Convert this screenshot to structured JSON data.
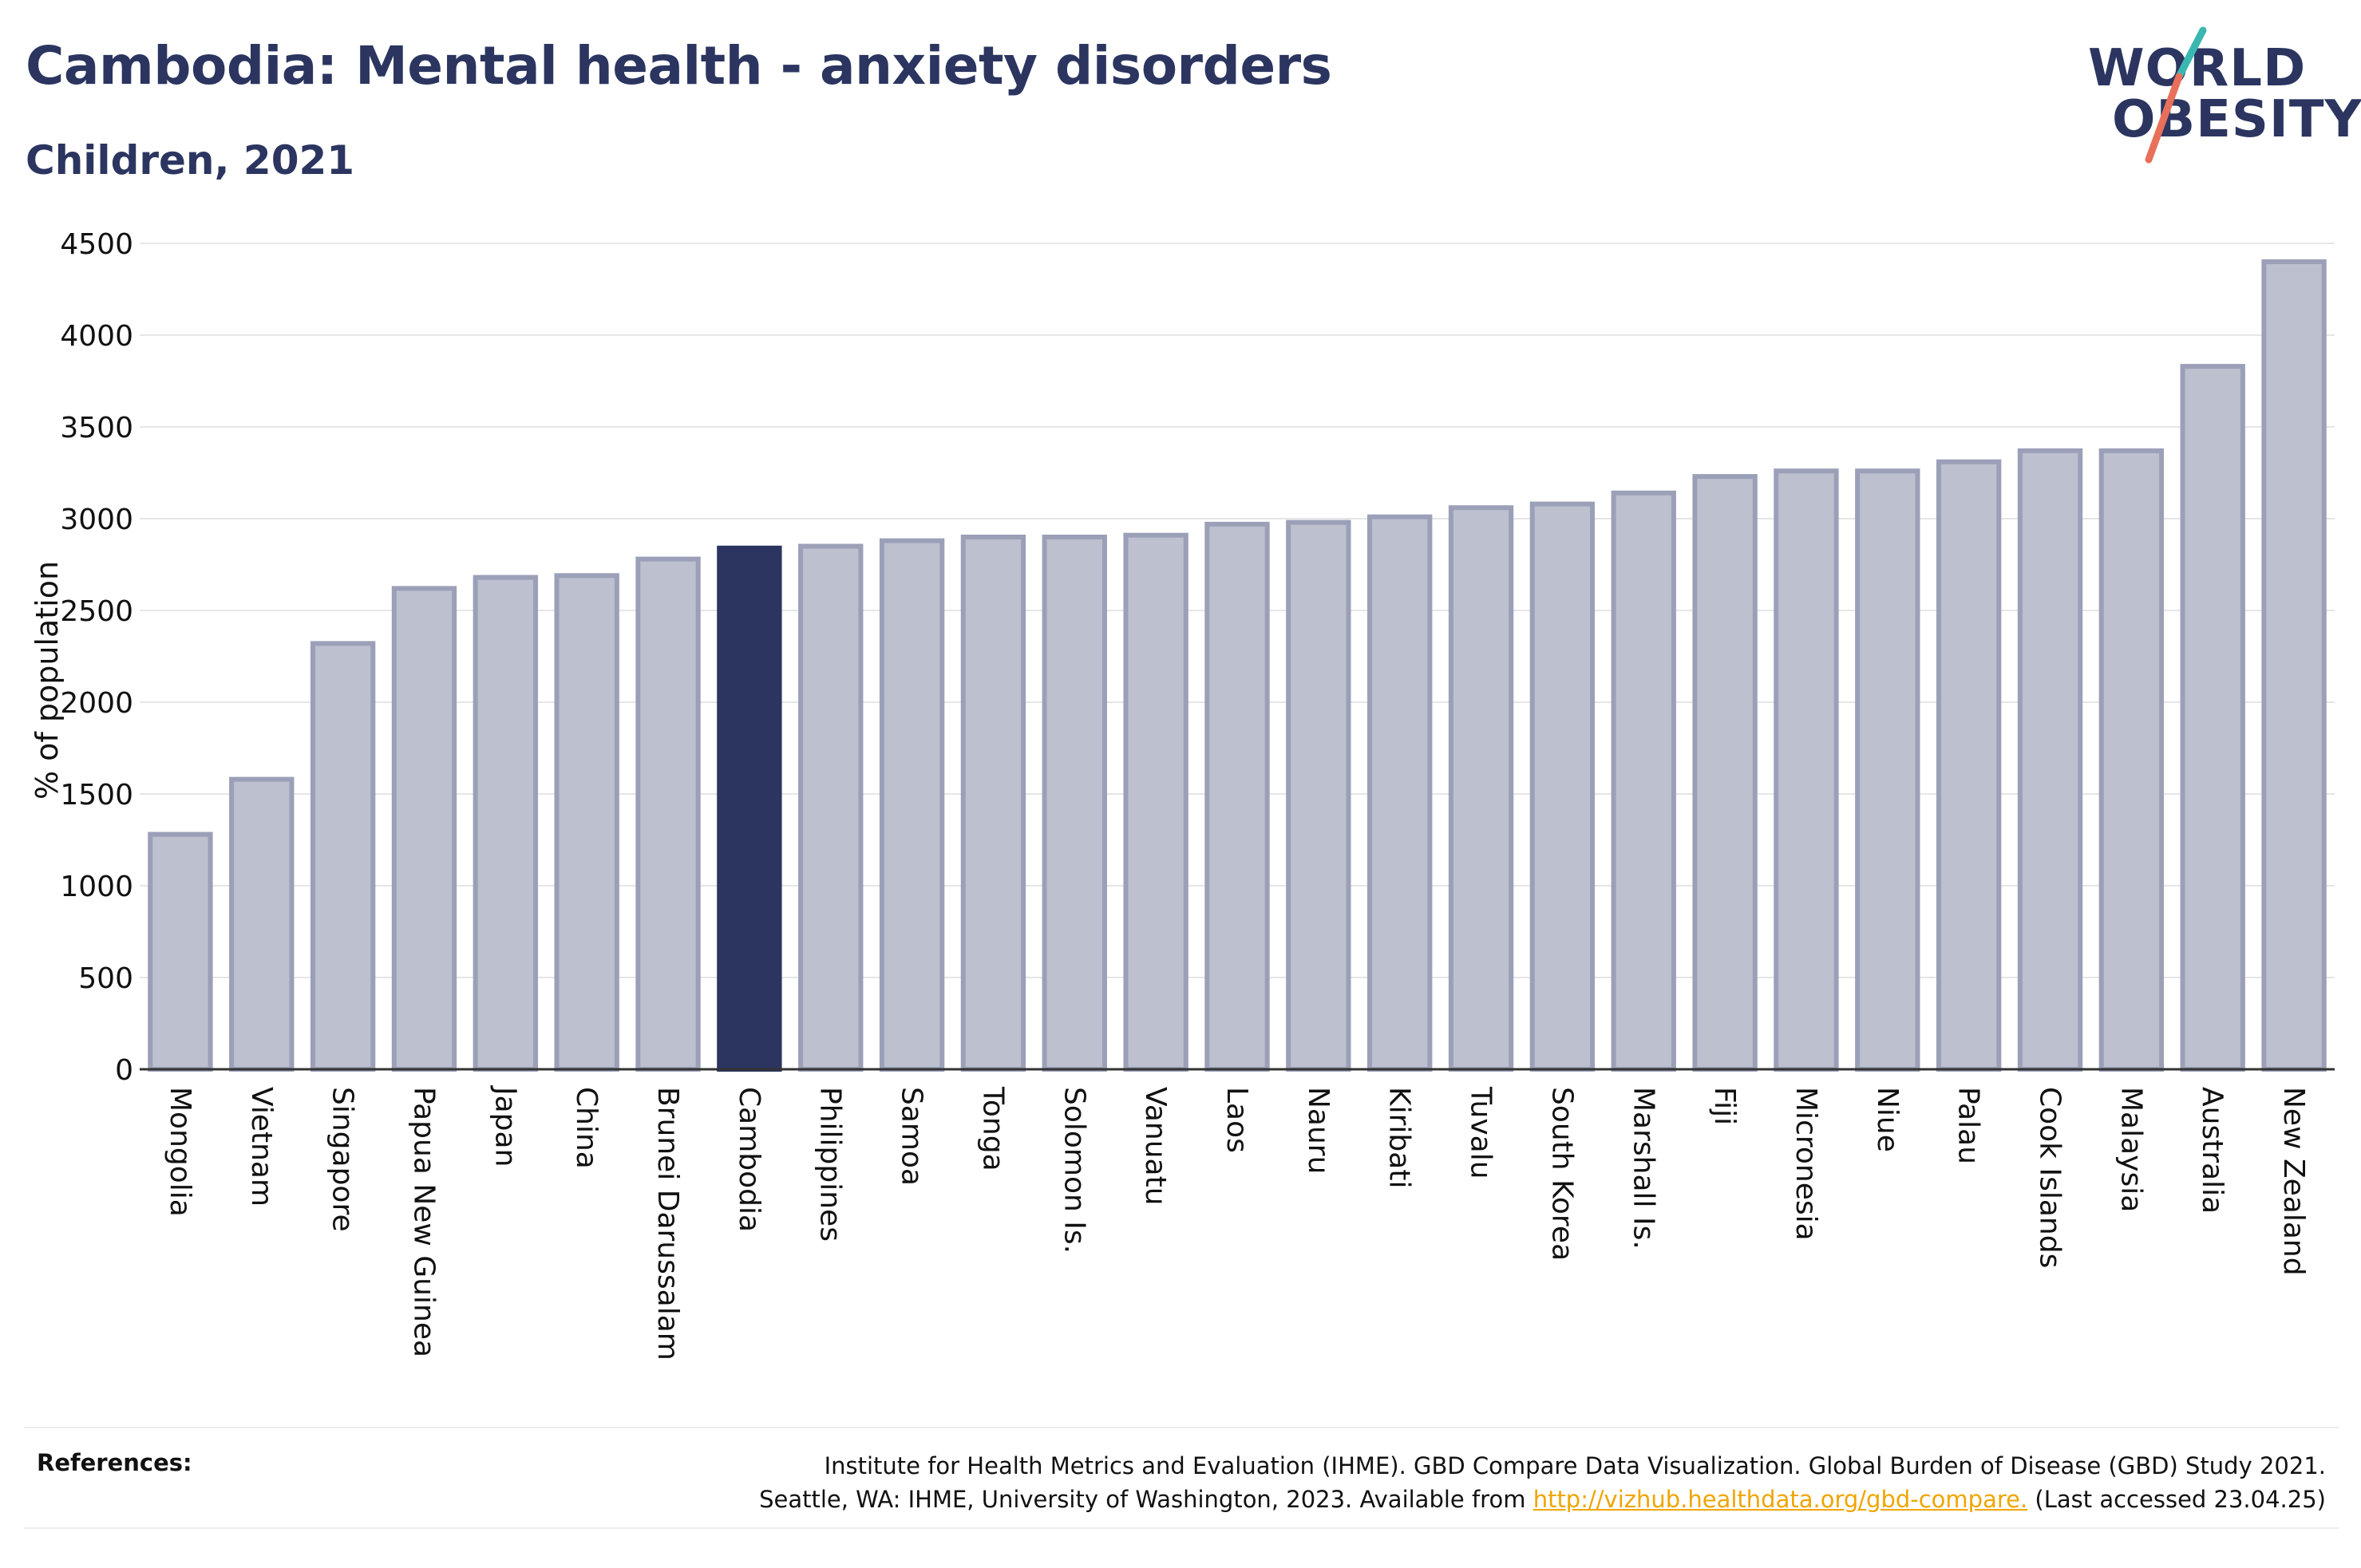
{
  "header": {
    "title": "Cambodia: Mental health - anxiety disorders",
    "subtitle": "Children, 2021"
  },
  "logo": {
    "line1": "WORLD",
    "line2": "OBESITY",
    "slash_colors": [
      "#3bb7b1",
      "#e8705a"
    ]
  },
  "colors": {
    "highlight": "#2b3560",
    "bar_fill": "#bcc0cf",
    "bar_border": "#9ba0b8",
    "grid": "#e6e6e6",
    "link": "#f0a500"
  },
  "chart_data": {
    "type": "bar",
    "ylabel": "% of population",
    "xlabel": "",
    "ylim": [
      0,
      4500
    ],
    "yticks": [
      0,
      500,
      1000,
      1500,
      2000,
      2500,
      3000,
      3500,
      4000,
      4500
    ],
    "grid": true,
    "highlight_category": "Cambodia",
    "categories": [
      "Mongolia",
      "Vietnam",
      "Singapore",
      "Papua New Guinea",
      "Japan",
      "China",
      "Brunei Darussalam",
      "Cambodia",
      "Philippines",
      "Samoa",
      "Tonga",
      "Solomon Is.",
      "Vanuatu",
      "Laos",
      "Nauru",
      "Kiribati",
      "Tuvalu",
      "South Korea",
      "Marshall Is.",
      "Fiji",
      "Micronesia",
      "Niue",
      "Palau",
      "Cook Islands",
      "Malaysia",
      "Australia",
      "New Zealand"
    ],
    "values": [
      1280,
      1580,
      2320,
      2620,
      2680,
      2690,
      2780,
      2840,
      2850,
      2880,
      2900,
      2900,
      2910,
      2970,
      2980,
      3010,
      3060,
      3080,
      3140,
      3230,
      3260,
      3260,
      3310,
      3370,
      3370,
      3830,
      4400
    ]
  },
  "references": {
    "label": "References:",
    "line1": "Institute for Health Metrics and Evaluation (IHME). GBD Compare Data Visualization. Global Burden of Disease (GBD) Study 2021.",
    "line2_prefix": "Seattle, WA: IHME, University of Washington, 2023. Available from ",
    "link_text": "http://vizhub.healthdata.org/gbd-compare.",
    "line2_suffix": " (Last accessed 23.04.25)"
  }
}
